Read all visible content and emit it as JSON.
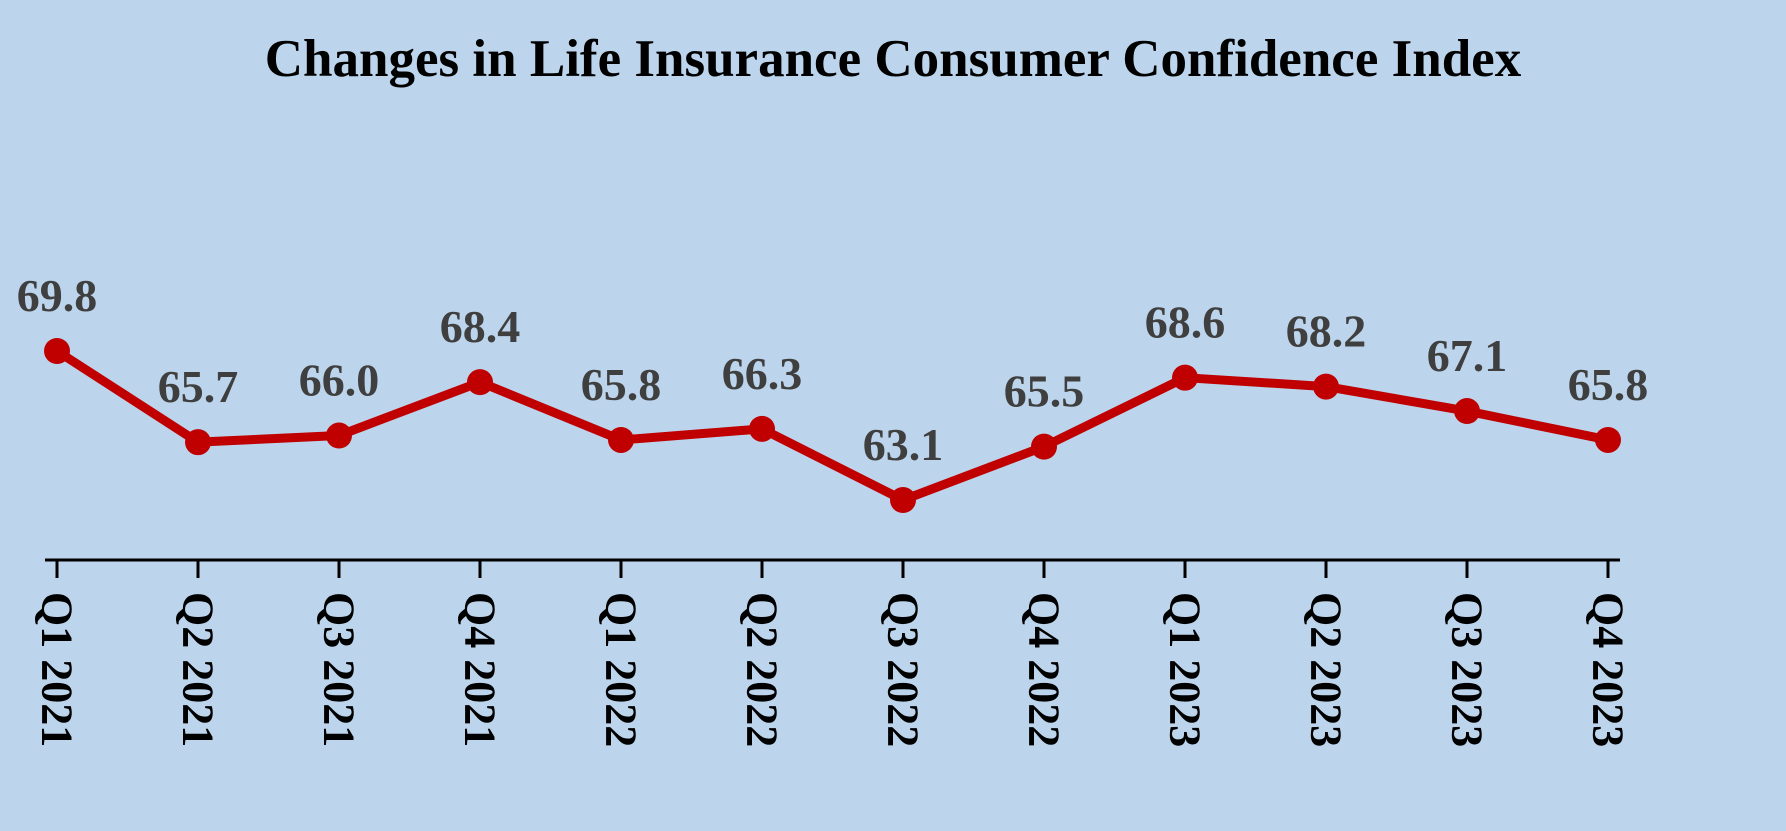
{
  "page": {
    "background_color": "#bcd5ec"
  },
  "chart_data": {
    "type": "line",
    "title": "Changes in Life Insurance Consumer Confidence Index",
    "categories": [
      "Q1 2021",
      "Q2 2021",
      "Q3 2021",
      "Q4 2021",
      "Q1 2022",
      "Q2 2022",
      "Q3 2022",
      "Q4 2022",
      "Q1 2023",
      "Q2 2023",
      "Q3 2023",
      "Q4 2023"
    ],
    "values": [
      69.8,
      65.7,
      66.0,
      68.4,
      65.8,
      66.3,
      63.1,
      65.5,
      68.6,
      68.2,
      67.1,
      65.8
    ],
    "value_label_decimals": 1,
    "value_labels_shown": true,
    "xlabel": "",
    "ylabel": "",
    "y_axis_shown": false,
    "grid": false,
    "legend": null,
    "x_label_rotation_deg": 90,
    "line_color": "#c00000",
    "marker_color": "#c00000",
    "marker_shape": "circle",
    "value_label_color": "#3f3f3f",
    "axis_color": "#000000",
    "title_color": "#000000"
  }
}
